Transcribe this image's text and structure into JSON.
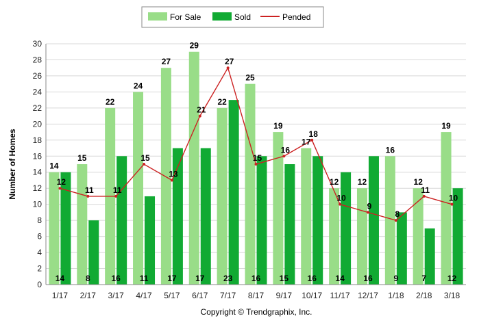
{
  "chart_data": {
    "type": "bar",
    "categories": [
      "1/17",
      "2/17",
      "3/17",
      "4/17",
      "5/17",
      "6/17",
      "7/17",
      "8/17",
      "9/17",
      "10/17",
      "11/17",
      "12/17",
      "1/18",
      "2/18",
      "3/18"
    ],
    "series": [
      {
        "name": "For Sale",
        "kind": "bar",
        "color": "#99dd88",
        "values": [
          14,
          15,
          22,
          24,
          27,
          29,
          22,
          25,
          19,
          17,
          12,
          12,
          16,
          12,
          19
        ]
      },
      {
        "name": "Sold",
        "kind": "bar",
        "color": "#11aa33",
        "values": [
          14,
          8,
          16,
          11,
          17,
          17,
          23,
          16,
          15,
          16,
          14,
          16,
          9,
          7,
          12
        ]
      },
      {
        "name": "Pended",
        "kind": "line",
        "color": "#cc2222",
        "values": [
          12,
          11,
          11,
          15,
          13,
          21,
          27,
          15,
          16,
          18,
          10,
          9,
          8,
          11,
          10
        ]
      }
    ],
    "ylabel": "Number of Homes",
    "ylim": [
      0,
      30
    ],
    "yticks": [
      "0",
      "2",
      "4",
      "6",
      "8",
      "10",
      "12",
      "14",
      "16",
      "18",
      "20",
      "22",
      "24",
      "26",
      "28",
      "30"
    ],
    "grid": true,
    "legend_position": "top-center"
  },
  "footer": {
    "copyright": "Copyright © Trendgraphix, Inc."
  }
}
